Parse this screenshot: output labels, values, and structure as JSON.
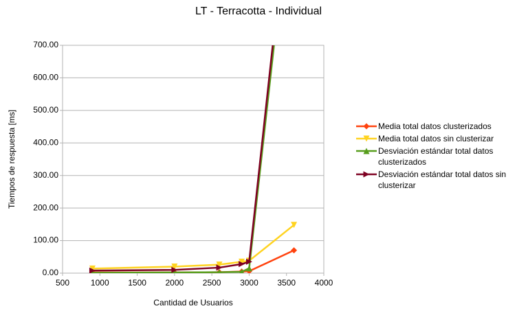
{
  "chart_data": {
    "type": "line",
    "title": "LT - Terracotta - Individual",
    "x_label": "Cantidad de Usuarios",
    "y_label": "Tiempos de respuesta [ms]",
    "x": [
      900,
      2000,
      2600,
      2900,
      3000,
      3600
    ],
    "series": [
      {
        "name": "Media total datos clusterizados",
        "color": "#ff420e",
        "marker": "diamond",
        "values": [
          2,
          2,
          3,
          5,
          6,
          70
        ]
      },
      {
        "name": "Media total datos sin clusterizar",
        "color": "#ffd320",
        "marker": "triangle-down",
        "values": [
          14,
          20,
          26,
          35,
          38,
          148
        ]
      },
      {
        "name": "Desviación estándar total datos clusterizados",
        "color": "#579d1c",
        "marker": "triangle-up",
        "values": [
          1,
          2,
          3,
          4,
          15,
          1250
        ]
      },
      {
        "name": "Desviación estándar total datos sin clusterizar",
        "color": "#7e0021",
        "marker": "triangle-right",
        "values": [
          8,
          10,
          17,
          28,
          35,
          1300
        ]
      }
    ],
    "xlim": [
      500,
      4000
    ],
    "xticks": [
      500,
      1000,
      1500,
      2000,
      2500,
      3000,
      3500,
      4000
    ],
    "ylim": [
      0,
      700
    ],
    "yticks": [
      {
        "value": 0,
        "label": "0.00"
      },
      {
        "value": 100,
        "label": "100.00"
      },
      {
        "value": 200,
        "label": "200.00"
      },
      {
        "value": 300,
        "label": "300.00"
      },
      {
        "value": 400,
        "label": "400.00"
      },
      {
        "value": 500,
        "label": "500.00"
      },
      {
        "value": 600,
        "label": "600.00"
      },
      {
        "value": 700,
        "label": "700.00"
      }
    ],
    "grid": true,
    "legend": "right"
  }
}
